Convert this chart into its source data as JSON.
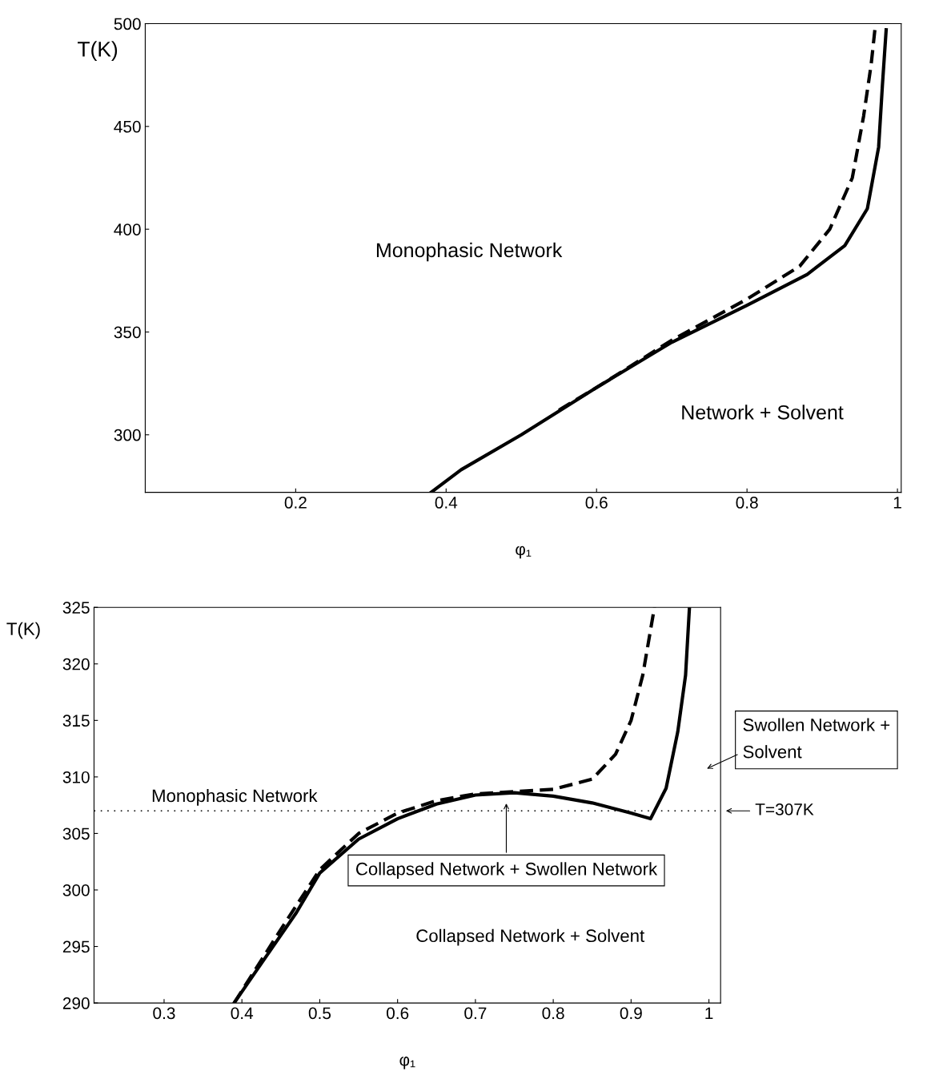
{
  "chart_data": [
    {
      "type": "line",
      "xlabel": "φ₁",
      "ylabel": "T(K)",
      "xlim": [
        0,
        1.005
      ],
      "ylim": [
        272,
        500
      ],
      "xticks": [
        0.2,
        0.4,
        0.6,
        0.8,
        1
      ],
      "yticks": [
        300,
        350,
        400,
        450,
        500
      ],
      "grid": false,
      "legend": false,
      "series": [
        {
          "color": "#000000",
          "line_style": "solid",
          "x": [
            0.38,
            0.42,
            0.5,
            0.6,
            0.7,
            0.8,
            0.88,
            0.93,
            0.96,
            0.975,
            0.98,
            0.985
          ],
          "values": [
            272,
            283,
            300,
            323,
            345,
            363,
            378,
            392,
            410,
            440,
            470,
            497
          ]
        },
        {
          "color": "#000000",
          "line_style": "dashed",
          "x": [
            0.55,
            0.6,
            0.7,
            0.8,
            0.87,
            0.91,
            0.94,
            0.955,
            0.965,
            0.97
          ],
          "values": [
            312,
            323,
            346,
            366,
            382,
            400,
            425,
            455,
            480,
            497
          ]
        }
      ],
      "annotations": [
        "Monophasic Network",
        "Network + Solvent"
      ]
    },
    {
      "type": "line",
      "xlabel": "φ₁",
      "ylabel": "T(K)",
      "xlim": [
        0.21,
        1.015
      ],
      "ylim": [
        290,
        325
      ],
      "xticks": [
        0.3,
        0.4,
        0.5,
        0.6,
        0.7,
        0.8,
        0.9,
        1
      ],
      "yticks": [
        290,
        295,
        300,
        305,
        310,
        315,
        320,
        325
      ],
      "grid": false,
      "legend": false,
      "series": [
        {
          "color": "#000000",
          "line_style": "solid",
          "x": [
            0.39,
            0.43,
            0.47,
            0.5,
            0.55,
            0.6,
            0.65,
            0.7,
            0.75,
            0.8,
            0.85,
            0.9,
            0.925,
            0.945,
            0.96,
            0.97,
            0.975
          ],
          "values": [
            290,
            294,
            298,
            301.5,
            304.5,
            306.3,
            307.6,
            308.4,
            308.6,
            308.3,
            307.7,
            306.8,
            306.3,
            309,
            314,
            319,
            325
          ]
        },
        {
          "color": "#000000",
          "line_style": "dashed",
          "x": [
            0.39,
            0.45,
            0.5,
            0.55,
            0.6,
            0.65,
            0.7,
            0.75,
            0.8,
            0.85,
            0.88,
            0.9,
            0.915,
            0.93
          ],
          "values": [
            290,
            296.5,
            301.8,
            305,
            306.8,
            307.9,
            308.5,
            308.7,
            308.9,
            309.8,
            312,
            315,
            319,
            325
          ]
        }
      ],
      "ref_lines": [
        {
          "axis": "y",
          "value": 307,
          "label": "T=307K",
          "line_style": "dotted"
        }
      ],
      "annotations": [
        "Monophasic Network",
        "Collapsed Network + Solvent",
        "Collapsed Network + Swollen Network",
        "Swollen Network +\nSolvent"
      ]
    }
  ]
}
